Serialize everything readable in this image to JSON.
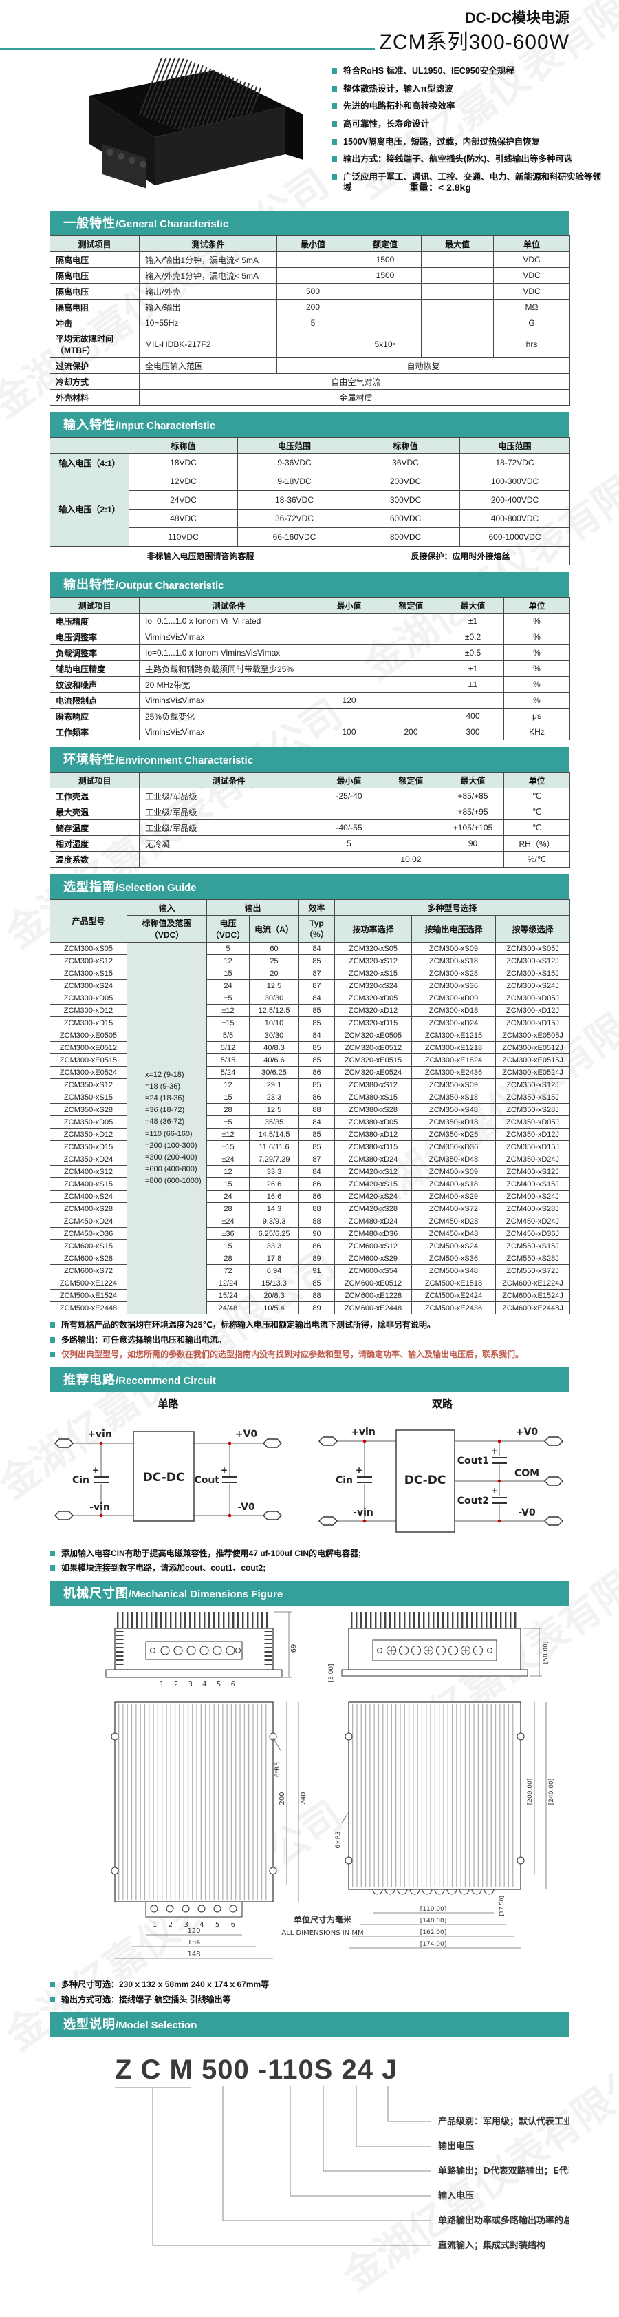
{
  "watermark": "金湖亿嘉仪表有限公司",
  "header": {
    "title_line1": "DC-DC模块电源",
    "title_line2": "ZCM系列300-600W"
  },
  "page": {
    "weight_label": "重量：< 2.8kg"
  },
  "features": [
    "符合RoHS 标准、UL1950、IEC950安全规程",
    "整体散热设计，输入π型滤波",
    "先进的电路拓扑和高转换效率",
    "高可靠性，长寿命设计",
    "1500V隔离电压，短路，过载，内部过热保护自恢复",
    "输出方式：接线端子、航空插头(防水)、引线输出等多种可选",
    "广泛应用于军工、通讯、工控、交通、电力、新能源和科研实验等领域"
  ],
  "sections": {
    "general": {
      "zh": "一般特性",
      "en": "/General Characteristic"
    },
    "input": {
      "zh": "输入特性",
      "en": "/Input Characteristic"
    },
    "output": {
      "zh": "输出特性",
      "en": "/Output Characteristic"
    },
    "env": {
      "zh": "环境特性",
      "en": "/Environment Characteristic"
    },
    "selection": {
      "zh": "选型指南",
      "en": "/Selection Guide"
    },
    "circuit": {
      "zh": "推荐电路",
      "en": "/Recommend Circuit"
    },
    "mech": {
      "zh": "机械尺寸图",
      "en": "/Mechanical Dimensions Figure"
    },
    "model": {
      "zh": "选型说明",
      "en": "/Model Selection"
    }
  },
  "general_table": {
    "heads": [
      [
        "测试项目",
        "测试条件",
        "最小值",
        "额定值",
        "最大值",
        "单位"
      ]
    ],
    "rows": [
      [
        "隔离电压",
        "输入/输出1分钟，漏电流< 5mA",
        "",
        "1500",
        "",
        "VDC"
      ],
      [
        "隔离电压",
        "输入/外壳1分钟，漏电流< 5mA",
        "",
        "1500",
        "",
        "VDC"
      ],
      [
        "隔离电压",
        "输出/外壳",
        "500",
        "",
        "",
        "VDC"
      ],
      [
        "隔离电阻",
        "输入/输出",
        "200",
        "",
        "",
        "MΩ"
      ],
      [
        "冲击",
        "10~55Hz",
        "5",
        "",
        "",
        "G"
      ],
      [
        "平均无故障时间（MTBF）",
        "MIL-HDBK-217F2",
        "",
        "5x10⁵",
        "",
        "hrs"
      ],
      [
        "过流保护",
        "全电压输入范围",
        {
          "t": "自动恢复",
          "c": 4,
          "k": "c"
        }
      ],
      [
        "冷却方式",
        {
          "t": "自由空气对流",
          "c": 5,
          "k": "c"
        }
      ],
      [
        "外壳材料",
        {
          "t": "金属材质",
          "c": 5,
          "k": "c"
        }
      ]
    ]
  },
  "input_table": {
    "heads": [
      [
        "",
        "标称值",
        "电压范围",
        "标称值",
        "电压范围"
      ]
    ],
    "rows": [
      [
        {
          "t": "输入电压（4:1）",
          "k": "lab"
        },
        "18VDC",
        "9-36VDC",
        "36VDC",
        "18-72VDC"
      ],
      [
        {
          "t": "输入电压（2:1）",
          "r": 4,
          "k": "lab"
        },
        "12VDC",
        "9-18VDC",
        "200VDC",
        "100-300VDC"
      ],
      [
        "24VDC",
        "18-36VDC",
        "300VDC",
        "200-400VDC"
      ],
      [
        "48VDC",
        "36-72VDC",
        "600VDC",
        "400-800VDC"
      ],
      [
        "110VDC",
        "66-160VDC",
        "800VDC",
        "600-1000VDC"
      ],
      [
        {
          "t": "非标输入电压范围请咨询客服",
          "c": 3,
          "k": "b"
        },
        {
          "t": "反接保护：应用时外接熔丝",
          "c": 2,
          "k": "b"
        }
      ]
    ]
  },
  "output_table": {
    "heads": [
      [
        "测试项目",
        "测试条件",
        "最小值",
        "额定值",
        "最大值",
        "单位"
      ]
    ],
    "rows": [
      [
        "电压精度",
        "Io=0.1...1.0 x Ionom Vi=Vi rated",
        "",
        "",
        "±1",
        "%"
      ],
      [
        "电压调整率",
        "Vimin≤Vi≤Vimax",
        "",
        "",
        "±0.2",
        "%"
      ],
      [
        "负载调整率",
        "Io=0.1...1.0 x Ionom Vimin≤Vi≤Vimax",
        "",
        "",
        "±0.5",
        "%"
      ],
      [
        "辅助电压精度",
        "主路负载和辅路负载须同时带载至少25%",
        "",
        "",
        "±1",
        "%"
      ],
      [
        "纹波和噪声",
        "20 MHz带宽",
        "",
        "",
        "±1",
        "%"
      ],
      [
        "电流限制点",
        "Vimin≤Vi≤Vimax",
        "120",
        "",
        "",
        "%"
      ],
      [
        "瞬态响应",
        "25%负载变化",
        "",
        "",
        "400",
        "μs"
      ],
      [
        "工作频率",
        "Vimin≤Vi≤Vimax",
        "100",
        "200",
        "300",
        "KHz"
      ]
    ]
  },
  "env_table": {
    "heads": [
      [
        "测试项目",
        "测试条件",
        "最小值",
        "额定值",
        "最大值",
        "单位"
      ]
    ],
    "rows": [
      [
        "工作壳温",
        "工业级/军品级",
        "-25/-40",
        "",
        "+85/+85",
        "℃"
      ],
      [
        "最大壳温",
        "工业级/军品级",
        "",
        "",
        "+85/+95",
        "℃"
      ],
      [
        "储存温度",
        "工业级/军品级",
        "-40/-55",
        "",
        "+105/+105",
        "℃"
      ],
      [
        "相对湿度",
        "无冷凝",
        "5",
        "",
        "90",
        "RH（%）"
      ],
      [
        "温度系数",
        "",
        {
          "t": "±0.02",
          "c": 3,
          "k": "c"
        },
        "%/℃"
      ]
    ]
  },
  "selection_table": {
    "heads": [
      [
        {
          "t": "产品型号",
          "r": 2
        },
        "输入",
        {
          "t": "输出",
          "c": 2
        },
        "效率",
        {
          "t": "多种型号选择",
          "c": 3
        }
      ],
      [
        "标称值及范围（VDC）",
        "电压（VDC）",
        "电流（A）",
        "Typ（%）",
        "按功率选择",
        "按输出电压选择",
        "按等级选择"
      ]
    ],
    "rows": [
      [
        "ZCM300-xS05",
        {
          "t": "x=12    (9-18)\n=18    (9-36)\n=24    (18-36)\n=36    (18-72)\n=48    (36-72)\n=110   (66-160)\n=200   (100-300)\n=300   (200-400)\n=600   (400-800)\n=800   (600-1000)",
          "r": 30,
          "k": "inputcol pre"
        },
        "5",
        "60",
        "84",
        "ZCM320-xS05",
        "ZCM300-xS09",
        "ZCM300-xS05J"
      ],
      [
        "ZCM300-xS12",
        "12",
        "25",
        "85",
        "ZCM320-xS12",
        "ZCM300-xS18",
        "ZCM300-xS12J"
      ],
      [
        "ZCM300-xS15",
        "15",
        "20",
        "87",
        "ZCM320-xS15",
        "ZCM300-xS28",
        "ZCM300-xS15J"
      ],
      [
        "ZCM300-xS24",
        "24",
        "12.5",
        "87",
        "ZCM320-xS24",
        "ZCM300-xS36",
        "ZCM300-xS24J"
      ],
      [
        "ZCM300-xD05",
        "±5",
        "30/30",
        "84",
        "ZCM320-xD05",
        "ZCM300-xD09",
        "ZCM300-xD05J"
      ],
      [
        "ZCM300-xD12",
        "±12",
        "12.5/12.5",
        "85",
        "ZCM320-xD12",
        "ZCM300-xD18",
        "ZCM300-xD12J"
      ],
      [
        "ZCM300-xD15",
        "±15",
        "10/10",
        "85",
        "ZCM320-xD15",
        "ZCM300-xD24",
        "ZCM300-xD15J"
      ],
      [
        "ZCM300-xE0505",
        "5/5",
        "30/30",
        "84",
        "ZCM320-xE0505",
        "ZCM300-xE1215",
        "ZCM300-xE0505J"
      ],
      [
        "ZCM300-xE0512",
        "5/12",
        "40/8.3",
        "85",
        "ZCM320-xE0512",
        "ZCM300-xE1218",
        "ZCM300-xE0512J"
      ],
      [
        "ZCM300-xE0515",
        "5/15",
        "40/6.6",
        "85",
        "ZCM320-xE0515",
        "ZCM300-xE1824",
        "ZCM300-xE0515J"
      ],
      [
        "ZCM300-xE0524",
        "5/24",
        "30/6.25",
        "86",
        "ZCM320-xE0524",
        "ZCM300-xE2436",
        "ZCM300-xE0524J"
      ],
      [
        "ZCM350-xS12",
        "12",
        "29.1",
        "85",
        "ZCM380-xS12",
        "ZCM350-xS09",
        "ZCM350-xS12J"
      ],
      [
        "ZCM350-xS15",
        "15",
        "23.3",
        "86",
        "ZCM380-xS15",
        "ZCM350-xS18",
        "ZCM350-xS15J"
      ],
      [
        "ZCM350-xS28",
        "28",
        "12.5",
        "88",
        "ZCM380-xS28",
        "ZCM350-xS48",
        "ZCM350-xS28J"
      ],
      [
        "ZCM350-xD05",
        "±5",
        "35/35",
        "84",
        "ZCM380-xD05",
        "ZCM350-xD18",
        "ZCM350-xD05J"
      ],
      [
        "ZCM350-xD12",
        "±12",
        "14.5/14.5",
        "85",
        "ZCM380-xD12",
        "ZCM350-xD26",
        "ZCM350-xD12J"
      ],
      [
        "ZCM350-xD15",
        "±15",
        "11.6/11.6",
        "85",
        "ZCM380-xD15",
        "ZCM350-xD36",
        "ZCM350-xD15J"
      ],
      [
        "ZCM350-xD24",
        "±24",
        "7.29/7.29",
        "87",
        "ZCM380-xD24",
        "ZCM350-xD48",
        "ZCM350-xD24J"
      ],
      [
        "ZCM400-xS12",
        "12",
        "33.3",
        "84",
        "ZCM420-xS12",
        "ZCM400-xS09",
        "ZCM400-xS12J"
      ],
      [
        "ZCM400-xS15",
        "15",
        "26.6",
        "86",
        "ZCM420-xS15",
        "ZCM400-xS18",
        "ZCM400-xS15J"
      ],
      [
        "ZCM400-xS24",
        "24",
        "16.6",
        "86",
        "ZCM420-xS24",
        "ZCM400-xS29",
        "ZCM400-xS24J"
      ],
      [
        "ZCM400-xS28",
        "28",
        "14.3",
        "88",
        "ZCM420-xS28",
        "ZCM400-xS72",
        "ZCM400-xS28J"
      ],
      [
        "ZCM450-xD24",
        "±24",
        "9.3/9.3",
        "88",
        "ZCM480-xD24",
        "ZCM450-xD28",
        "ZCM450-xD24J"
      ],
      [
        "ZCM450-xD36",
        "±36",
        "6.25/6.25",
        "90",
        "ZCM480-xD36",
        "ZCM450-xD48",
        "ZCM450-xD36J"
      ],
      [
        "ZCM600-xS15",
        "15",
        "33.3",
        "86",
        "ZCM600-xS12",
        "ZCM500-xS24",
        "ZCM550-xS15J"
      ],
      [
        "ZCM600-xS28",
        "28",
        "17.8",
        "89",
        "ZCM600-xS29",
        "ZCM500-xS36",
        "ZCM550-xS28J"
      ],
      [
        "ZCM600-xS72",
        "72",
        "6.94",
        "91",
        "ZCM600-xS54",
        "ZCM500-xS48",
        "ZCM550-xS72J"
      ],
      [
        "ZCM500-xE1224",
        "12/24",
        "15/13.3",
        "85",
        "ZCM600-xE0512",
        "ZCM500-xE1518",
        "ZCM600-xE1224J"
      ],
      [
        "ZCM500-xE1524",
        "15/24",
        "20/8.3",
        "88",
        "ZCM600-xE1228",
        "ZCM500-xE2424",
        "ZCM600-xE1524J"
      ],
      [
        "ZCM500-xE2448",
        "24/48",
        "10/5.4",
        "89",
        "ZCM600-xE2448",
        "ZCM500-xE2436",
        "ZCM600-xE2448J"
      ]
    ]
  },
  "selection_notes": [
    "所有规格产品的数据均在环境温度为25℃，标称输入电压和额定输出电流下测试所得，除非另有说明。",
    "多路输出：可任意选择输出电压和输出电流。",
    "仅列出典型型号，如您所需的参数在我们的选型指南内没有找到对应参数和型号，请确定功率、输入及输出电压后，联系我们。"
  ],
  "circuit": {
    "single": {
      "title": "单路",
      "vin_p": "+vin",
      "vin_n": "-vin",
      "vo_p": "+V0",
      "vo_n": "-V0",
      "cin": "Cin",
      "cout": "Cout",
      "box": "DC-DC"
    },
    "dual": {
      "title": "双路",
      "vin_p": "+vin",
      "vin_n": "-vin",
      "vo_p": "+V0",
      "vo_n": "-V0",
      "com": "COM",
      "cin": "Cin",
      "cout1": "Cout1",
      "cout2": "Cout2",
      "box": "DC-DC"
    },
    "notes": [
      "添加输入电容CIN有助于提高电磁兼容性，推荐使用47 uf-100uf CIN的电解电容器;",
      "如果模块连接到数字电路，请添加cout、cout1、cout2;"
    ]
  },
  "mech": {
    "front_left": {
      "terminals": "1   2   3   4   5   6",
      "dim_h": "69"
    },
    "front_right": {
      "dim_h": "[58.00]",
      "dim_base": "[3.00]"
    },
    "top_left": {
      "terminals": "1   2   3   4   5   6",
      "dim_w1": "120",
      "dim_w2": "134",
      "dim_w3": "148",
      "dim_h1": "200",
      "dim_h2": "240",
      "radius": "6*R3"
    },
    "top_right": {
      "dim_w1": "[110.00]",
      "dim_w2": "[148.00]",
      "dim_w3": "[162.00]",
      "dim_w4": "[174.00]",
      "dim_h1": "[200.00]",
      "dim_h2": "[240.00]",
      "dim_t": "[17.50]",
      "radius": "6×R3"
    },
    "unit_cn": "单位尺寸为毫米",
    "unit_en": "ALL DIMENSIONS IN MM",
    "notes": [
      "多种尺寸可选：230 x 132 x 58mm   240 x 174 x 67mm等",
      "输出方式可选：接线端子 航空插头 引线输出等"
    ]
  },
  "model": {
    "code": "Z C M 500 -110S 24 J",
    "callouts": [
      "产品级别：军用级；默认代表工业级",
      "输出电压",
      "单路输出；D代表双路输出；E代表输出隔离",
      "输入电压",
      "单路输出功率或多路输出功率的总和",
      "直流输入；集成式封装结构"
    ]
  }
}
